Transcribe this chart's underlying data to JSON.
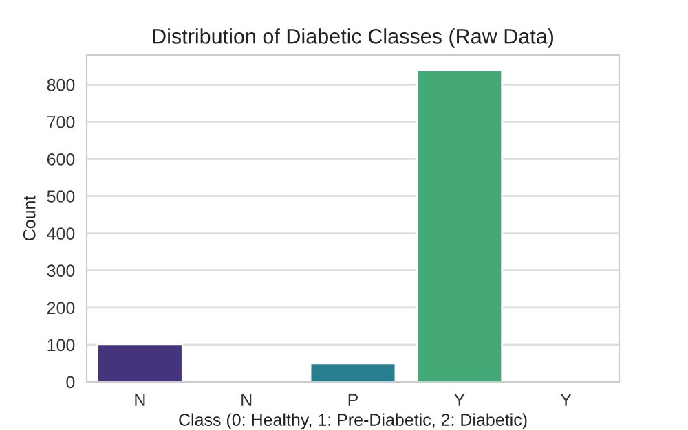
{
  "chart_data": {
    "type": "bar",
    "title": "Distribution of Diabetic Classes (Raw Data)",
    "xlabel": "Class (0: Healthy, 1: Pre-Diabetic, 2: Diabetic)",
    "ylabel": "Count",
    "categories": [
      "N",
      "N",
      "P",
      "Y",
      "Y"
    ],
    "values": [
      102,
      null,
      50,
      840,
      null
    ],
    "colors": [
      "#46337e",
      "#365c8d",
      "#277f8e",
      "#45a977",
      "#4ac16d"
    ],
    "ylim": [
      0,
      880
    ],
    "yticks": [
      0,
      100,
      200,
      300,
      400,
      500,
      600,
      700,
      800
    ],
    "grid": "y"
  }
}
